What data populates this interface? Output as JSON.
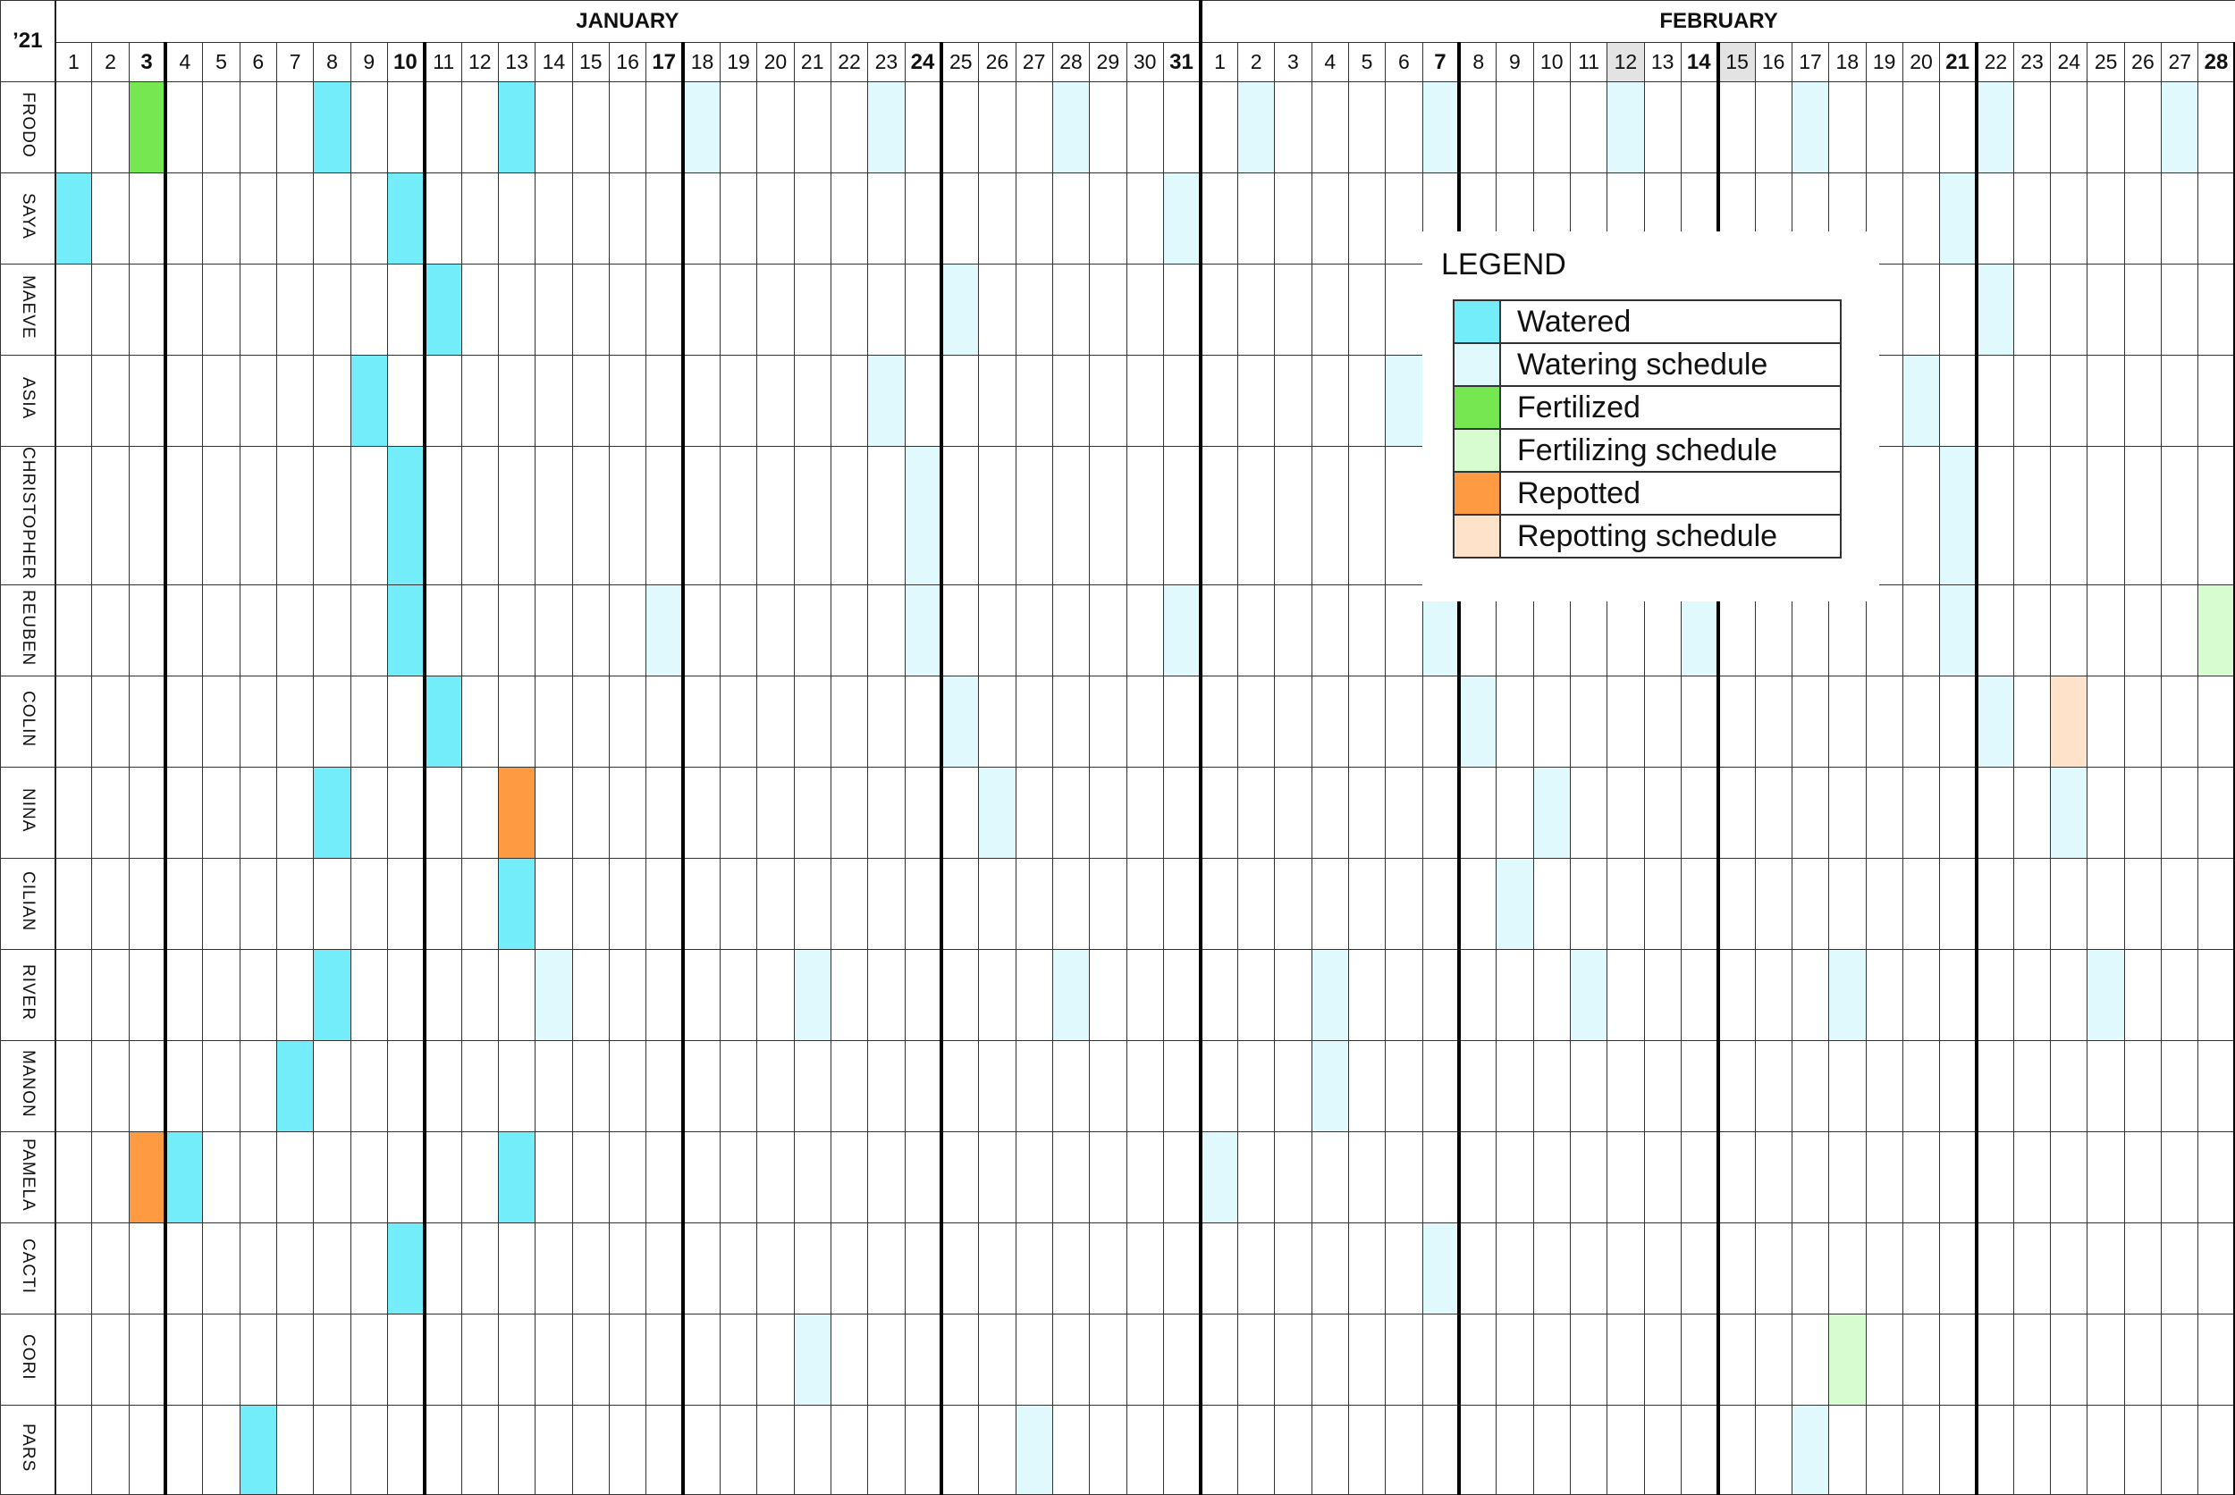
{
  "year_label": "’21",
  "colors": {
    "watered": "#74edfb",
    "watering_schedule": "#dff9fc",
    "fertilized": "#76e651",
    "fertilizing_schedule": "#d6fcd0",
    "repotted": "#fd9a42",
    "repotting_schedule": "#fee2c9",
    "highlight_day": "#e3e3e3"
  },
  "months": [
    {
      "key": "jan",
      "name": "JANUARY",
      "days": 31,
      "bold_days": [
        3,
        10,
        17,
        24,
        31
      ],
      "gray_days": []
    },
    {
      "key": "feb",
      "name": "FEBRUARY",
      "days": 28,
      "bold_days": [
        7,
        14,
        21,
        28
      ],
      "gray_days": [
        12,
        15
      ]
    }
  ],
  "plants": [
    {
      "name": "FRODO",
      "cells": [
        [
          "jan",
          3,
          "fertilized"
        ],
        [
          "jan",
          8,
          "watered"
        ],
        [
          "jan",
          13,
          "watered"
        ],
        [
          "jan",
          18,
          "watering_schedule"
        ],
        [
          "jan",
          23,
          "watering_schedule"
        ],
        [
          "jan",
          28,
          "watering_schedule"
        ],
        [
          "feb",
          2,
          "watering_schedule"
        ],
        [
          "feb",
          7,
          "watering_schedule"
        ],
        [
          "feb",
          12,
          "watering_schedule"
        ],
        [
          "feb",
          17,
          "watering_schedule"
        ],
        [
          "feb",
          22,
          "watering_schedule"
        ],
        [
          "feb",
          27,
          "watering_schedule"
        ]
      ]
    },
    {
      "name": "SAYA",
      "cells": [
        [
          "jan",
          1,
          "watered"
        ],
        [
          "jan",
          10,
          "watered"
        ],
        [
          "jan",
          31,
          "watering_schedule"
        ],
        [
          "feb",
          21,
          "watering_schedule"
        ]
      ]
    },
    {
      "name": "MAEVE",
      "cells": [
        [
          "jan",
          11,
          "watered"
        ],
        [
          "jan",
          25,
          "watering_schedule"
        ],
        [
          "feb",
          22,
          "watering_schedule"
        ]
      ]
    },
    {
      "name": "ASIA",
      "cells": [
        [
          "jan",
          9,
          "watered"
        ],
        [
          "jan",
          23,
          "watering_schedule"
        ],
        [
          "feb",
          6,
          "watering_schedule"
        ],
        [
          "feb",
          20,
          "watering_schedule"
        ]
      ]
    },
    {
      "name": "CHRISTOPHER",
      "cells": [
        [
          "jan",
          10,
          "watered"
        ],
        [
          "jan",
          24,
          "watering_schedule"
        ],
        [
          "feb",
          21,
          "watering_schedule"
        ]
      ]
    },
    {
      "name": "REUBEN",
      "cells": [
        [
          "jan",
          10,
          "watered"
        ],
        [
          "jan",
          17,
          "watering_schedule"
        ],
        [
          "jan",
          24,
          "watering_schedule"
        ],
        [
          "jan",
          31,
          "watering_schedule"
        ],
        [
          "feb",
          7,
          "watering_schedule"
        ],
        [
          "feb",
          14,
          "watering_schedule"
        ],
        [
          "feb",
          21,
          "watering_schedule"
        ],
        [
          "feb",
          28,
          "fertilizing_schedule"
        ]
      ]
    },
    {
      "name": "COLIN",
      "cells": [
        [
          "jan",
          11,
          "watered"
        ],
        [
          "jan",
          25,
          "watering_schedule"
        ],
        [
          "feb",
          8,
          "watering_schedule"
        ],
        [
          "feb",
          22,
          "watering_schedule"
        ],
        [
          "feb",
          24,
          "repotting_schedule"
        ]
      ]
    },
    {
      "name": "NINA",
      "cells": [
        [
          "jan",
          8,
          "watered"
        ],
        [
          "jan",
          13,
          "repotted"
        ],
        [
          "jan",
          26,
          "watering_schedule"
        ],
        [
          "feb",
          10,
          "watering_schedule"
        ],
        [
          "feb",
          24,
          "watering_schedule"
        ]
      ]
    },
    {
      "name": "CILIAN",
      "cells": [
        [
          "jan",
          13,
          "watered"
        ],
        [
          "feb",
          9,
          "watering_schedule"
        ]
      ]
    },
    {
      "name": "RIVER",
      "cells": [
        [
          "jan",
          8,
          "watered"
        ],
        [
          "jan",
          14,
          "watering_schedule"
        ],
        [
          "jan",
          21,
          "watering_schedule"
        ],
        [
          "jan",
          28,
          "watering_schedule"
        ],
        [
          "feb",
          4,
          "watering_schedule"
        ],
        [
          "feb",
          11,
          "watering_schedule"
        ],
        [
          "feb",
          18,
          "watering_schedule"
        ],
        [
          "feb",
          25,
          "watering_schedule"
        ]
      ]
    },
    {
      "name": "MANON",
      "cells": [
        [
          "jan",
          7,
          "watered"
        ],
        [
          "feb",
          4,
          "watering_schedule"
        ]
      ]
    },
    {
      "name": "PAMELA",
      "cells": [
        [
          "jan",
          3,
          "repotted"
        ],
        [
          "jan",
          4,
          "watered"
        ],
        [
          "jan",
          13,
          "watered"
        ],
        [
          "feb",
          1,
          "watering_schedule"
        ]
      ]
    },
    {
      "name": "CACTI",
      "cells": [
        [
          "jan",
          10,
          "watered"
        ],
        [
          "feb",
          7,
          "watering_schedule"
        ]
      ]
    },
    {
      "name": "CORI",
      "cells": [
        [
          "jan",
          21,
          "watering_schedule"
        ],
        [
          "feb",
          18,
          "fertilizing_schedule"
        ]
      ]
    },
    {
      "name": "PARS",
      "cells": [
        [
          "jan",
          6,
          "watered"
        ],
        [
          "jan",
          27,
          "watering_schedule"
        ],
        [
          "feb",
          17,
          "watering_schedule"
        ]
      ]
    }
  ],
  "legend": {
    "title": "LEGEND",
    "items": [
      {
        "key": "watered",
        "label": "Watered"
      },
      {
        "key": "watering_schedule",
        "label": "Watering schedule"
      },
      {
        "key": "fertilized",
        "label": "Fertilized"
      },
      {
        "key": "fertilizing_schedule",
        "label": "Fertilizing schedule"
      },
      {
        "key": "repotted",
        "label": "Repotted"
      },
      {
        "key": "repotting_schedule",
        "label": "Repotting schedule"
      }
    ]
  }
}
